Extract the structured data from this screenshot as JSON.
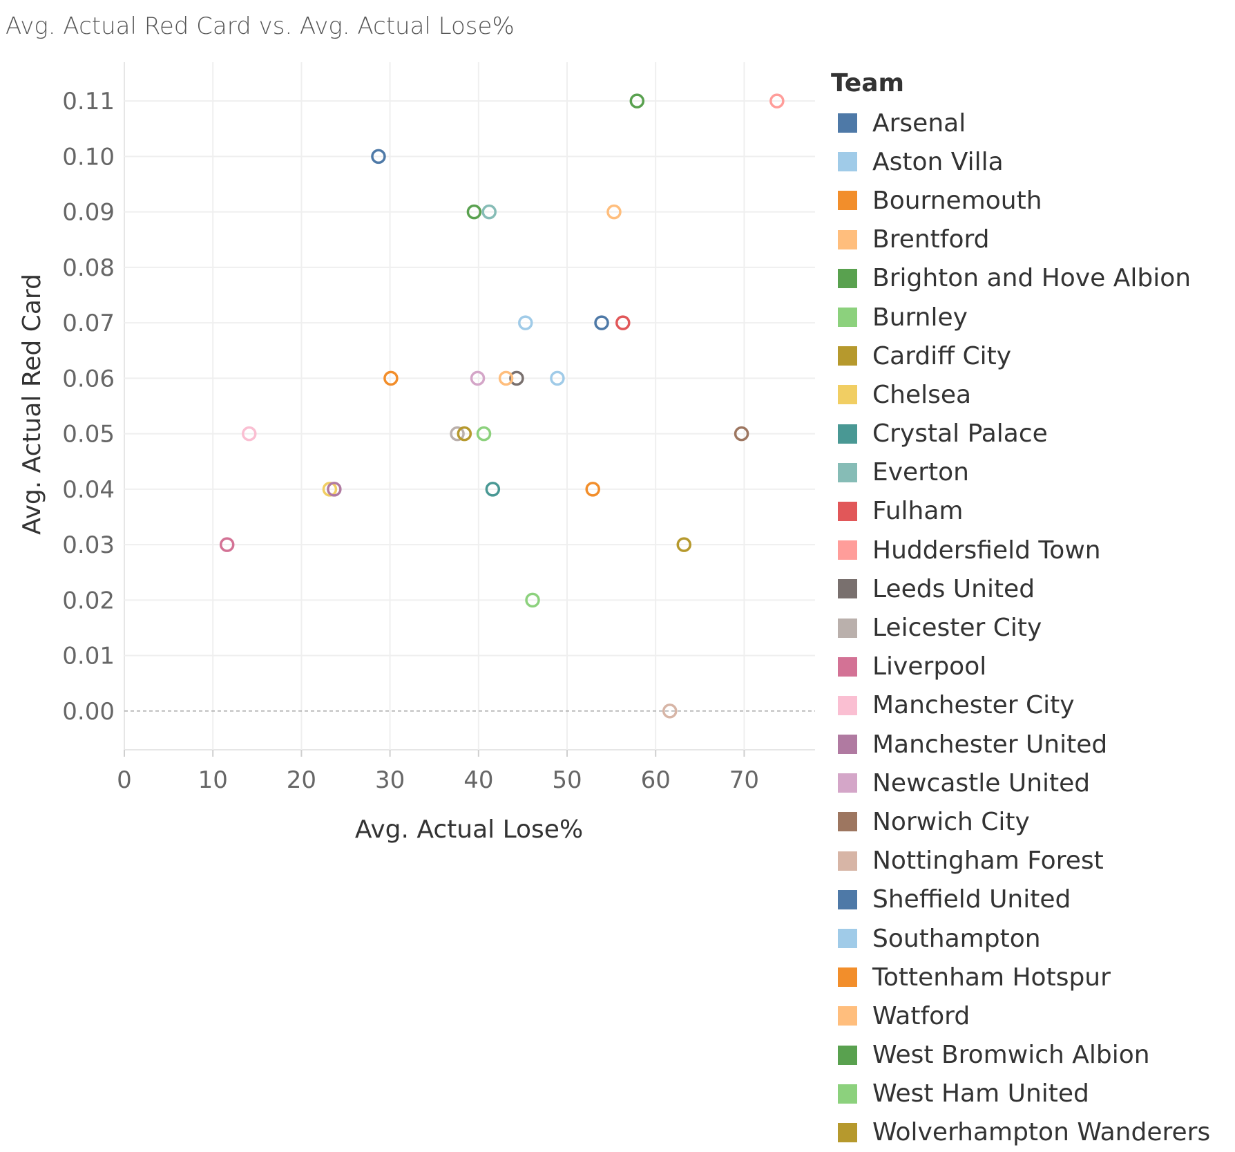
{
  "chart_data": {
    "type": "scatter",
    "title": "Avg. Actual Red Card vs. Avg. Actual Lose%",
    "xlabel": "Avg. Actual Lose%",
    "ylabel": "Avg. Actual Red Card",
    "xlim": [
      0,
      78
    ],
    "ylim": [
      -0.007,
      0.117
    ],
    "x_ticks": [
      0,
      10,
      20,
      30,
      40,
      50,
      60,
      70
    ],
    "y_ticks": [
      0.0,
      0.01,
      0.02,
      0.03,
      0.04,
      0.05,
      0.06,
      0.07,
      0.08,
      0.09,
      0.1,
      0.11
    ],
    "x_tick_labels": [
      "0",
      "10",
      "20",
      "30",
      "40",
      "50",
      "60",
      "70"
    ],
    "y_tick_labels": [
      "0.00",
      "0.01",
      "0.02",
      "0.03",
      "0.04",
      "0.05",
      "0.06",
      "0.07",
      "0.08",
      "0.09",
      "0.10",
      "0.11"
    ],
    "grid": true,
    "marker": "open-circle",
    "legend_title": "Team",
    "legend_position": "right",
    "series": [
      {
        "name": "Arsenal",
        "color": "#4e79a7",
        "x": 28.7,
        "y": 0.1
      },
      {
        "name": "Aston Villa",
        "color": "#a0cbe8",
        "x": 45.3,
        "y": 0.07
      },
      {
        "name": "Bournemouth",
        "color": "#f28e2b",
        "x": 30.1,
        "y": 0.06
      },
      {
        "name": "Brentford",
        "color": "#ffbe7d",
        "x": 55.3,
        "y": 0.09
      },
      {
        "name": "Brighton and Hove Albion",
        "color": "#59a14f",
        "x": 39.5,
        "y": 0.09
      },
      {
        "name": "Burnley",
        "color": "#8cd17d",
        "x": 46.1,
        "y": 0.02
      },
      {
        "name": "Cardiff City",
        "color": "#b6992d",
        "x": 63.2,
        "y": 0.03
      },
      {
        "name": "Chelsea",
        "color": "#f1ce63",
        "x": 23.2,
        "y": 0.04
      },
      {
        "name": "Crystal Palace",
        "color": "#499894",
        "x": 41.6,
        "y": 0.04
      },
      {
        "name": "Everton",
        "color": "#86bcb6",
        "x": 41.2,
        "y": 0.09
      },
      {
        "name": "Fulham",
        "color": "#e15759",
        "x": 56.3,
        "y": 0.07
      },
      {
        "name": "Huddersfield Town",
        "color": "#ff9d9a",
        "x": 73.7,
        "y": 0.11
      },
      {
        "name": "Leeds United",
        "color": "#79706e",
        "x": 44.3,
        "y": 0.06
      },
      {
        "name": "Leicester City",
        "color": "#bab0ac",
        "x": 37.6,
        "y": 0.05
      },
      {
        "name": "Liverpool",
        "color": "#d37295",
        "x": 11.6,
        "y": 0.03
      },
      {
        "name": "Manchester City",
        "color": "#fabfd2",
        "x": 14.1,
        "y": 0.05
      },
      {
        "name": "Manchester United",
        "color": "#b07aa1",
        "x": 23.7,
        "y": 0.04
      },
      {
        "name": "Newcastle United",
        "color": "#d4a6c8",
        "x": 39.9,
        "y": 0.06
      },
      {
        "name": "Norwich City",
        "color": "#9d7660",
        "x": 69.7,
        "y": 0.05
      },
      {
        "name": "Nottingham Forest",
        "color": "#d7b5a6",
        "x": 61.6,
        "y": 0.0
      },
      {
        "name": "Sheffield United",
        "color": "#4e79a7",
        "x": 53.9,
        "y": 0.07
      },
      {
        "name": "Southampton",
        "color": "#a0cbe8",
        "x": 48.9,
        "y": 0.06
      },
      {
        "name": "Tottenham Hotspur",
        "color": "#f28e2b",
        "x": 52.9,
        "y": 0.04
      },
      {
        "name": "Watford",
        "color": "#ffbe7d",
        "x": 43.1,
        "y": 0.06
      },
      {
        "name": "West Bromwich Albion",
        "color": "#59a14f",
        "x": 57.9,
        "y": 0.11
      },
      {
        "name": "West Ham United",
        "color": "#8cd17d",
        "x": 40.6,
        "y": 0.05
      },
      {
        "name": "Wolverhampton Wanderers",
        "color": "#b6992d",
        "x": 38.4,
        "y": 0.05
      }
    ]
  }
}
